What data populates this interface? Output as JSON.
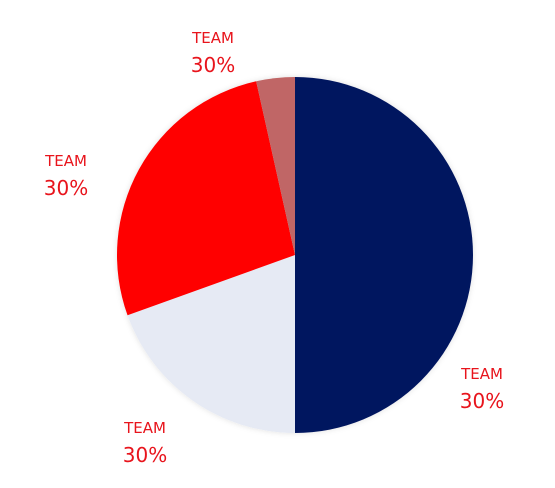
{
  "chart_data": {
    "type": "pie",
    "categories": [
      "TEAM",
      "TEAM",
      "TEAM",
      "TEAM"
    ],
    "values": [
      50,
      19.5,
      27,
      3.5
    ],
    "colors": [
      "#00145e",
      "#e6eaf4",
      "#ff0000",
      "#c06666"
    ],
    "annotations": [
      "30%",
      "30%",
      "30%",
      "30%"
    ]
  }
}
